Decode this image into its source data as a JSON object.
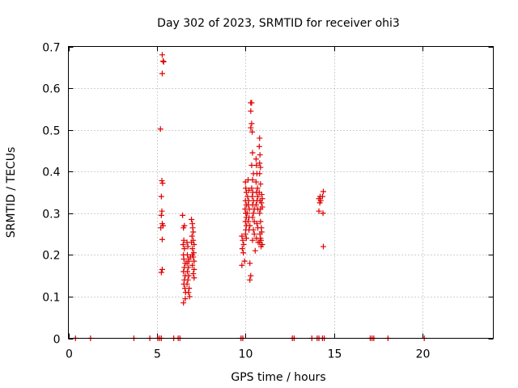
{
  "chart_data": {
    "type": "scatter",
    "title": "Day 302 of 2023, SRMTID for receiver ohi3",
    "xlabel": "GPS time / hours",
    "ylabel": "SRMTID / TECUs",
    "xlim": [
      0,
      24
    ],
    "ylim": [
      0,
      0.7
    ],
    "xticks": [
      0,
      5,
      10,
      15,
      20
    ],
    "yticks": [
      0,
      0.1,
      0.2,
      0.3,
      0.4,
      0.5,
      0.6,
      0.7
    ],
    "x_tick_labels": [
      "0",
      "5",
      "10",
      "15",
      "20"
    ],
    "y_tick_labels": [
      "0",
      "0.1",
      "0.2",
      "0.3",
      "0.4",
      "0.5",
      "0.6",
      "0.7"
    ],
    "grid": true,
    "marker": "plus",
    "marker_color": "#e00000",
    "series": [
      {
        "name": "SRMTID",
        "points": [
          [
            0.4,
            0
          ],
          [
            1.25,
            0
          ],
          [
            3.7,
            0
          ],
          [
            4.6,
            0
          ],
          [
            5.05,
            0
          ],
          [
            5.15,
            0
          ],
          [
            5.25,
            0
          ],
          [
            5.95,
            0
          ],
          [
            6.2,
            0
          ],
          [
            6.3,
            0
          ],
          [
            9.75,
            0
          ],
          [
            9.85,
            0
          ],
          [
            12.65,
            0
          ],
          [
            12.75,
            0
          ],
          [
            13.75,
            0
          ],
          [
            14.05,
            0
          ],
          [
            14.15,
            0
          ],
          [
            14.35,
            0
          ],
          [
            14.45,
            0
          ],
          [
            17.05,
            0
          ],
          [
            17.15,
            0
          ],
          [
            17.25,
            0
          ],
          [
            18.05,
            0
          ],
          [
            20.1,
            0
          ],
          [
            5.3,
            0.68
          ],
          [
            5.35,
            0.665
          ],
          [
            5.38,
            0.663
          ],
          [
            5.3,
            0.635
          ],
          [
            5.2,
            0.502
          ],
          [
            5.28,
            0.378
          ],
          [
            5.32,
            0.372
          ],
          [
            5.25,
            0.34
          ],
          [
            5.28,
            0.305
          ],
          [
            5.25,
            0.295
          ],
          [
            5.3,
            0.275
          ],
          [
            5.35,
            0.27
          ],
          [
            5.22,
            0.265
          ],
          [
            5.3,
            0.237
          ],
          [
            5.3,
            0.165
          ],
          [
            5.25,
            0.158
          ],
          [
            6.45,
            0.295
          ],
          [
            6.5,
            0.265
          ],
          [
            6.55,
            0.27
          ],
          [
            6.52,
            0.235
          ],
          [
            6.48,
            0.225
          ],
          [
            6.55,
            0.215
          ],
          [
            6.5,
            0.2
          ],
          [
            6.52,
            0.19
          ],
          [
            6.6,
            0.18
          ],
          [
            6.55,
            0.17
          ],
          [
            6.5,
            0.16
          ],
          [
            6.6,
            0.15
          ],
          [
            6.55,
            0.14
          ],
          [
            6.52,
            0.13
          ],
          [
            6.58,
            0.12
          ],
          [
            6.62,
            0.11
          ],
          [
            6.5,
            0.085
          ],
          [
            6.6,
            0.095
          ],
          [
            6.7,
            0.23
          ],
          [
            6.75,
            0.22
          ],
          [
            6.72,
            0.2
          ],
          [
            6.8,
            0.19
          ],
          [
            6.7,
            0.18
          ],
          [
            6.78,
            0.17
          ],
          [
            6.72,
            0.16
          ],
          [
            6.8,
            0.15
          ],
          [
            6.75,
            0.14
          ],
          [
            6.7,
            0.13
          ],
          [
            6.82,
            0.12
          ],
          [
            6.78,
            0.11
          ],
          [
            6.85,
            0.1
          ],
          [
            6.8,
            0.185
          ],
          [
            6.9,
            0.195
          ],
          [
            6.95,
            0.285
          ],
          [
            7.0,
            0.275
          ],
          [
            7.02,
            0.265
          ],
          [
            7.05,
            0.255
          ],
          [
            6.98,
            0.245
          ],
          [
            7.05,
            0.235
          ],
          [
            7.1,
            0.225
          ],
          [
            7.0,
            0.215
          ],
          [
            7.08,
            0.205
          ],
          [
            7.05,
            0.195
          ],
          [
            7.1,
            0.185
          ],
          [
            7.0,
            0.175
          ],
          [
            7.1,
            0.165
          ],
          [
            7.05,
            0.155
          ],
          [
            7.1,
            0.145
          ],
          [
            6.95,
            0.23
          ],
          [
            7.0,
            0.2
          ],
          [
            9.8,
            0.245
          ],
          [
            9.85,
            0.235
          ],
          [
            9.9,
            0.225
          ],
          [
            9.82,
            0.215
          ],
          [
            9.88,
            0.205
          ],
          [
            9.8,
            0.175
          ],
          [
            9.95,
            0.185
          ],
          [
            10.0,
            0.375
          ],
          [
            10.02,
            0.36
          ],
          [
            10.05,
            0.35
          ],
          [
            10.0,
            0.33
          ],
          [
            10.05,
            0.32
          ],
          [
            9.98,
            0.31
          ],
          [
            10.02,
            0.3
          ],
          [
            10.05,
            0.29
          ],
          [
            10.0,
            0.28
          ],
          [
            10.05,
            0.27
          ],
          [
            10.02,
            0.26
          ],
          [
            10.0,
            0.25
          ],
          [
            10.05,
            0.24
          ],
          [
            10.15,
            0.38
          ],
          [
            10.2,
            0.355
          ],
          [
            10.12,
            0.34
          ],
          [
            10.18,
            0.33
          ],
          [
            10.15,
            0.32
          ],
          [
            10.22,
            0.31
          ],
          [
            10.1,
            0.3
          ],
          [
            10.2,
            0.29
          ],
          [
            10.15,
            0.28
          ],
          [
            10.25,
            0.27
          ],
          [
            10.2,
            0.26
          ],
          [
            10.25,
            0.18
          ],
          [
            10.3,
            0.15
          ],
          [
            10.25,
            0.14
          ],
          [
            10.3,
            0.565
          ],
          [
            10.35,
            0.565
          ],
          [
            10.3,
            0.545
          ],
          [
            10.35,
            0.515
          ],
          [
            10.3,
            0.505
          ],
          [
            10.38,
            0.495
          ],
          [
            10.4,
            0.445
          ],
          [
            10.35,
            0.415
          ],
          [
            10.45,
            0.395
          ],
          [
            10.4,
            0.38
          ],
          [
            10.35,
            0.36
          ],
          [
            10.42,
            0.35
          ],
          [
            10.38,
            0.34
          ],
          [
            10.45,
            0.33
          ],
          [
            10.4,
            0.32
          ],
          [
            10.5,
            0.31
          ],
          [
            10.45,
            0.3
          ],
          [
            10.4,
            0.29
          ],
          [
            10.5,
            0.28
          ],
          [
            10.45,
            0.26
          ],
          [
            10.5,
            0.25
          ],
          [
            10.4,
            0.235
          ],
          [
            10.55,
            0.21
          ],
          [
            10.6,
            0.43
          ],
          [
            10.62,
            0.415
          ],
          [
            10.65,
            0.395
          ],
          [
            10.6,
            0.375
          ],
          [
            10.68,
            0.36
          ],
          [
            10.62,
            0.35
          ],
          [
            10.7,
            0.34
          ],
          [
            10.65,
            0.33
          ],
          [
            10.6,
            0.32
          ],
          [
            10.7,
            0.31
          ],
          [
            10.65,
            0.275
          ],
          [
            10.7,
            0.265
          ],
          [
            10.62,
            0.24
          ],
          [
            10.72,
            0.23
          ],
          [
            10.8,
            0.48
          ],
          [
            10.78,
            0.46
          ],
          [
            10.82,
            0.44
          ],
          [
            10.8,
            0.42
          ],
          [
            10.85,
            0.41
          ],
          [
            10.8,
            0.395
          ],
          [
            10.85,
            0.37
          ],
          [
            10.78,
            0.35
          ],
          [
            10.82,
            0.33
          ],
          [
            10.85,
            0.31
          ],
          [
            10.8,
            0.3
          ],
          [
            10.85,
            0.28
          ],
          [
            10.82,
            0.25
          ],
          [
            10.85,
            0.24
          ],
          [
            10.8,
            0.23
          ],
          [
            10.88,
            0.22
          ],
          [
            10.9,
            0.265
          ],
          [
            10.92,
            0.255
          ],
          [
            10.88,
            0.235
          ],
          [
            10.95,
            0.225
          ],
          [
            10.92,
            0.345
          ],
          [
            10.95,
            0.335
          ],
          [
            10.9,
            0.325
          ],
          [
            10.95,
            0.315
          ],
          [
            14.15,
            0.335
          ],
          [
            14.2,
            0.325
          ],
          [
            14.25,
            0.33
          ],
          [
            14.22,
            0.34
          ],
          [
            14.15,
            0.305
          ],
          [
            14.35,
            0.34
          ],
          [
            14.4,
            0.352
          ],
          [
            14.38,
            0.3
          ],
          [
            14.4,
            0.22
          ]
        ]
      }
    ]
  }
}
